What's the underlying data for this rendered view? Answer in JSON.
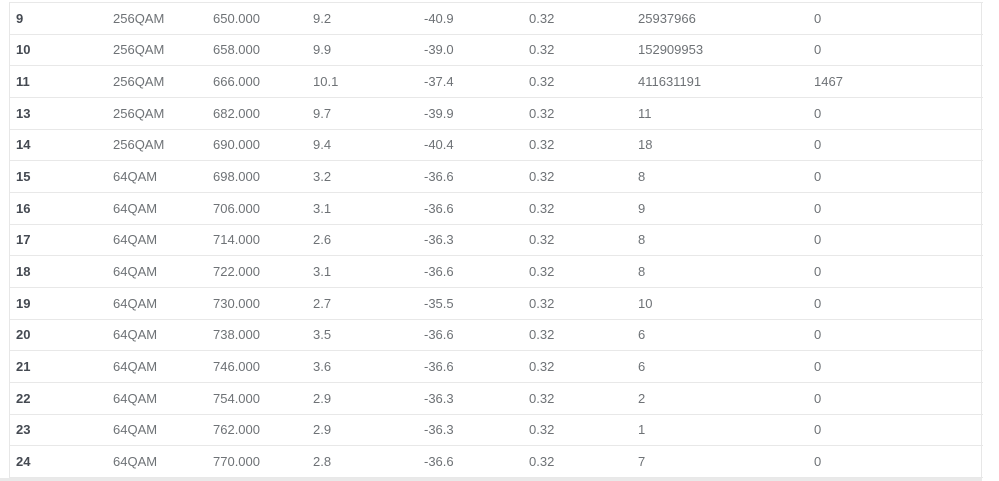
{
  "colors": {
    "row_background": "#ffffff",
    "separator": "#e8e8e8",
    "outer_border": "#e7e7e7",
    "channel_text": "#454a52",
    "data_text": "#6e7276",
    "bottom_strip": "#e9e9e9"
  },
  "table": {
    "rows": [
      {
        "cells": [
          "9",
          "256QAM",
          "650.000",
          "9.2",
          "-40.9",
          "0.32",
          "25937966",
          "0"
        ]
      },
      {
        "cells": [
          "10",
          "256QAM",
          "658.000",
          "9.9",
          "-39.0",
          "0.32",
          "152909953",
          "0"
        ]
      },
      {
        "cells": [
          "11",
          "256QAM",
          "666.000",
          "10.1",
          "-37.4",
          "0.32",
          "411631191",
          "1467"
        ]
      },
      {
        "cells": [
          "13",
          "256QAM",
          "682.000",
          "9.7",
          "-39.9",
          "0.32",
          "11",
          "0"
        ]
      },
      {
        "cells": [
          "14",
          "256QAM",
          "690.000",
          "9.4",
          "-40.4",
          "0.32",
          "18",
          "0"
        ]
      },
      {
        "cells": [
          "15",
          "64QAM",
          "698.000",
          "3.2",
          "-36.6",
          "0.32",
          "8",
          "0"
        ]
      },
      {
        "cells": [
          "16",
          "64QAM",
          "706.000",
          "3.1",
          "-36.6",
          "0.32",
          "9",
          "0"
        ]
      },
      {
        "cells": [
          "17",
          "64QAM",
          "714.000",
          "2.6",
          "-36.3",
          "0.32",
          "8",
          "0"
        ]
      },
      {
        "cells": [
          "18",
          "64QAM",
          "722.000",
          "3.1",
          "-36.6",
          "0.32",
          "8",
          "0"
        ]
      },
      {
        "cells": [
          "19",
          "64QAM",
          "730.000",
          "2.7",
          "-35.5",
          "0.32",
          "10",
          "0"
        ]
      },
      {
        "cells": [
          "20",
          "64QAM",
          "738.000",
          "3.5",
          "-36.6",
          "0.32",
          "6",
          "0"
        ]
      },
      {
        "cells": [
          "21",
          "64QAM",
          "746.000",
          "3.6",
          "-36.6",
          "0.32",
          "6",
          "0"
        ]
      },
      {
        "cells": [
          "22",
          "64QAM",
          "754.000",
          "2.9",
          "-36.3",
          "0.32",
          "2",
          "0"
        ]
      },
      {
        "cells": [
          "23",
          "64QAM",
          "762.000",
          "2.9",
          "-36.3",
          "0.32",
          "1",
          "0"
        ]
      },
      {
        "cells": [
          "24",
          "64QAM",
          "770.000",
          "2.8",
          "-36.6",
          "0.32",
          "7",
          "0"
        ]
      }
    ]
  }
}
